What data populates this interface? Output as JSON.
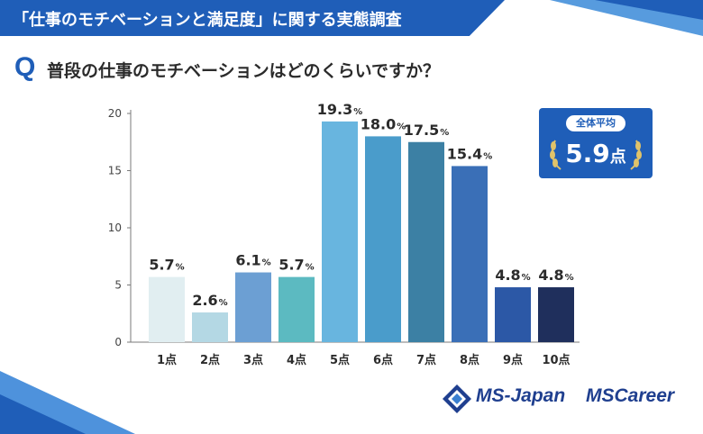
{
  "header": {
    "title": "「仕事のモチベーションと満足度」に関する実態調査"
  },
  "question": {
    "mark": "Q",
    "text": "普段の仕事のモチベーションはどのくらいですか？"
  },
  "average": {
    "label": "全体平均",
    "value": "5.9",
    "unit": "点"
  },
  "logos": {
    "ms_japan": "MS-Japan",
    "ms_career": "MSCareer"
  },
  "colors": {
    "brand_blue": "#1f5eb8",
    "bars": [
      "#e1eef1",
      "#b4d8e4",
      "#6c9fd3",
      "#5cbac1",
      "#68b5df",
      "#4a9ccb",
      "#3c80a4",
      "#3a6fb7",
      "#2c58a6",
      "#1f2f5c"
    ]
  },
  "chart_data": {
    "type": "bar",
    "categories": [
      "1点",
      "2点",
      "3点",
      "4点",
      "5点",
      "6点",
      "7点",
      "8点",
      "9点",
      "10点"
    ],
    "values": [
      5.7,
      2.6,
      6.1,
      5.7,
      19.3,
      18.0,
      17.5,
      15.4,
      4.8,
      4.8
    ],
    "labels": [
      "5.7",
      "2.6",
      "6.1",
      "5.7",
      "19.3",
      "18.0",
      "17.5",
      "15.4",
      "4.8",
      "4.8"
    ],
    "label_unit": "%",
    "yticks": [
      0,
      5,
      10,
      15,
      20
    ],
    "ylim": [
      0,
      20
    ],
    "title": "",
    "xlabel": "",
    "ylabel": ""
  }
}
